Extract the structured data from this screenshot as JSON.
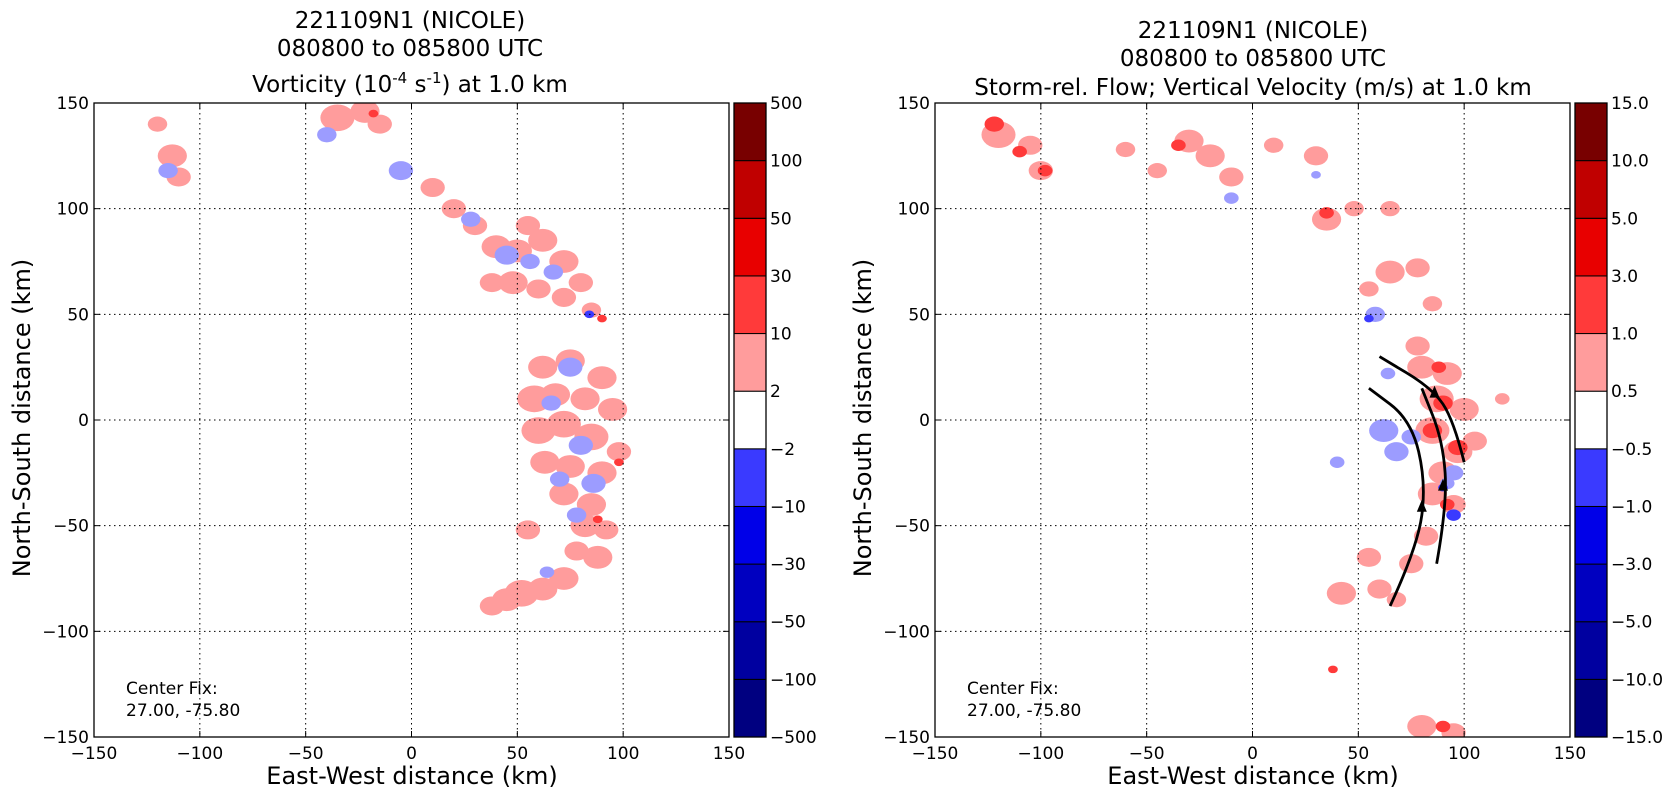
{
  "colors": {
    "positive": [
      "#ff9c9c",
      "#ff3a3a",
      "#e80000",
      "#c00000",
      "#a00000",
      "#780000"
    ],
    "negative": [
      "#9c9cff",
      "#3a3aff",
      "#0000e8",
      "#0000c0",
      "#0000a0",
      "#000080"
    ],
    "neutral": "#ffffff"
  },
  "chart_data": [
    {
      "type": "heatmap",
      "title_line1": "221109N1 (NICOLE)",
      "title_line2": "080800 to 085800 UTC",
      "title_line3_pre": "Vorticity (10",
      "title_line3_sup1": "-4",
      "title_line3_mid": " s",
      "title_line3_sup2": "-1",
      "title_line3_post": ") at 1.0 km",
      "xlabel": "East-West distance (km)",
      "ylabel": "North-South distance (km)",
      "xlim": [
        -150,
        150
      ],
      "ylim": [
        -150,
        150
      ],
      "xticks": [
        -150,
        -100,
        -50,
        0,
        50,
        100,
        150
      ],
      "yticks": [
        -150,
        -100,
        -50,
        0,
        50,
        100,
        150
      ],
      "grid": true,
      "annotation_line1": "Center Fix:",
      "annotation_line2": "27.00, -75.80",
      "colorbar_levels": [
        "−500",
        "−100",
        "−50",
        "−30",
        "−10",
        "−2",
        "2",
        "10",
        "30",
        "50",
        "100",
        "500"
      ],
      "patches_pos": [
        {
          "x": -120,
          "y": 140,
          "r": 4
        },
        {
          "x": -113,
          "y": 125,
          "r": 6
        },
        {
          "x": -110,
          "y": 115,
          "r": 5
        },
        {
          "x": -35,
          "y": 143,
          "r": 7
        },
        {
          "x": -22,
          "y": 146,
          "r": 6
        },
        {
          "x": -15,
          "y": 140,
          "r": 5
        },
        {
          "x": 10,
          "y": 110,
          "r": 5
        },
        {
          "x": 20,
          "y": 100,
          "r": 5
        },
        {
          "x": 30,
          "y": 92,
          "r": 5
        },
        {
          "x": 40,
          "y": 82,
          "r": 6
        },
        {
          "x": 50,
          "y": 80,
          "r": 6
        },
        {
          "x": 55,
          "y": 92,
          "r": 5
        },
        {
          "x": 62,
          "y": 85,
          "r": 6
        },
        {
          "x": 72,
          "y": 75,
          "r": 6
        },
        {
          "x": 80,
          "y": 65,
          "r": 5
        },
        {
          "x": 38,
          "y": 65,
          "r": 5
        },
        {
          "x": 48,
          "y": 65,
          "r": 6
        },
        {
          "x": 60,
          "y": 62,
          "r": 5
        },
        {
          "x": 72,
          "y": 58,
          "r": 5
        },
        {
          "x": 85,
          "y": 52,
          "r": 4
        },
        {
          "x": 62,
          "y": 25,
          "r": 6
        },
        {
          "x": 75,
          "y": 28,
          "r": 6
        },
        {
          "x": 90,
          "y": 20,
          "r": 6
        },
        {
          "x": 58,
          "y": 10,
          "r": 7
        },
        {
          "x": 68,
          "y": 12,
          "r": 6
        },
        {
          "x": 82,
          "y": 10,
          "r": 6
        },
        {
          "x": 95,
          "y": 5,
          "r": 6
        },
        {
          "x": 60,
          "y": -5,
          "r": 7
        },
        {
          "x": 72,
          "y": -2,
          "r": 7
        },
        {
          "x": 85,
          "y": -8,
          "r": 7
        },
        {
          "x": 98,
          "y": -15,
          "r": 5
        },
        {
          "x": 63,
          "y": -20,
          "r": 6
        },
        {
          "x": 75,
          "y": -22,
          "r": 6
        },
        {
          "x": 90,
          "y": -25,
          "r": 6
        },
        {
          "x": 72,
          "y": -35,
          "r": 6
        },
        {
          "x": 85,
          "y": -40,
          "r": 6
        },
        {
          "x": 82,
          "y": -50,
          "r": 6
        },
        {
          "x": 92,
          "y": -52,
          "r": 5
        },
        {
          "x": 55,
          "y": -52,
          "r": 5
        },
        {
          "x": 78,
          "y": -62,
          "r": 5
        },
        {
          "x": 88,
          "y": -65,
          "r": 6
        },
        {
          "x": 72,
          "y": -75,
          "r": 6
        },
        {
          "x": 62,
          "y": -80,
          "r": 6
        },
        {
          "x": 52,
          "y": -82,
          "r": 7
        },
        {
          "x": 45,
          "y": -85,
          "r": 6
        },
        {
          "x": 38,
          "y": -88,
          "r": 5
        }
      ],
      "patches_neg": [
        {
          "x": -115,
          "y": 118,
          "r": 4
        },
        {
          "x": -40,
          "y": 135,
          "r": 4
        },
        {
          "x": -5,
          "y": 118,
          "r": 5
        },
        {
          "x": 28,
          "y": 95,
          "r": 4
        },
        {
          "x": 45,
          "y": 78,
          "r": 5
        },
        {
          "x": 56,
          "y": 75,
          "r": 4
        },
        {
          "x": 67,
          "y": 70,
          "r": 4
        },
        {
          "x": 75,
          "y": 25,
          "r": 5
        },
        {
          "x": 66,
          "y": 8,
          "r": 4
        },
        {
          "x": 80,
          "y": -12,
          "r": 5
        },
        {
          "x": 70,
          "y": -28,
          "r": 4
        },
        {
          "x": 86,
          "y": -30,
          "r": 5
        },
        {
          "x": 78,
          "y": -45,
          "r": 4
        },
        {
          "x": 64,
          "y": -72,
          "r": 3
        }
      ],
      "patches_strong_pos": [
        {
          "x": 88,
          "y": -47,
          "r": 2
        },
        {
          "x": 98,
          "y": -20,
          "r": 2
        },
        {
          "x": 90,
          "y": 48,
          "r": 2
        },
        {
          "x": -18,
          "y": 145,
          "r": 2
        }
      ],
      "patches_strong_neg": [
        {
          "x": 84,
          "y": 50,
          "r": 2
        }
      ]
    },
    {
      "type": "heatmap",
      "title_line1": "221109N1 (NICOLE)",
      "title_line2": "080800 to 085800 UTC",
      "title_line3": "Storm-rel. Flow; Vertical Velocity (m/s) at 1.0 km",
      "xlabel": "East-West distance (km)",
      "ylabel": "North-South distance (km)",
      "xlim": [
        -150,
        150
      ],
      "ylim": [
        -150,
        150
      ],
      "xticks": [
        -150,
        -100,
        -50,
        0,
        50,
        100,
        150
      ],
      "yticks": [
        -150,
        -100,
        -50,
        0,
        50,
        100,
        150
      ],
      "grid": true,
      "annotation_line1": "Center Fix:",
      "annotation_line2": "27.00, -75.80",
      "colorbar_levels": [
        "−15.0",
        "−10.0",
        "−5.0",
        "−3.0",
        "−1.0",
        "−0.5",
        "0.5",
        "1.0",
        "3.0",
        "5.0",
        "10.0",
        "15.0"
      ],
      "patches_pos": [
        {
          "x": -120,
          "y": 135,
          "r": 7
        },
        {
          "x": -105,
          "y": 130,
          "r": 5
        },
        {
          "x": -100,
          "y": 118,
          "r": 5
        },
        {
          "x": -60,
          "y": 128,
          "r": 4
        },
        {
          "x": -45,
          "y": 118,
          "r": 4
        },
        {
          "x": -30,
          "y": 132,
          "r": 6
        },
        {
          "x": -20,
          "y": 125,
          "r": 6
        },
        {
          "x": -10,
          "y": 115,
          "r": 5
        },
        {
          "x": 10,
          "y": 130,
          "r": 4
        },
        {
          "x": 30,
          "y": 125,
          "r": 5
        },
        {
          "x": 35,
          "y": 95,
          "r": 6
        },
        {
          "x": 48,
          "y": 100,
          "r": 4
        },
        {
          "x": 65,
          "y": 100,
          "r": 4
        },
        {
          "x": 65,
          "y": 70,
          "r": 6
        },
        {
          "x": 78,
          "y": 72,
          "r": 5
        },
        {
          "x": 55,
          "y": 62,
          "r": 4
        },
        {
          "x": 85,
          "y": 55,
          "r": 4
        },
        {
          "x": 78,
          "y": 35,
          "r": 5
        },
        {
          "x": 80,
          "y": 25,
          "r": 6
        },
        {
          "x": 92,
          "y": 22,
          "r": 6
        },
        {
          "x": 87,
          "y": 10,
          "r": 7
        },
        {
          "x": 100,
          "y": 5,
          "r": 6
        },
        {
          "x": 85,
          "y": -5,
          "r": 7
        },
        {
          "x": 97,
          "y": -15,
          "r": 6
        },
        {
          "x": 105,
          "y": -10,
          "r": 5
        },
        {
          "x": 90,
          "y": -25,
          "r": 6
        },
        {
          "x": 85,
          "y": -35,
          "r": 6
        },
        {
          "x": 95,
          "y": -40,
          "r": 5
        },
        {
          "x": 82,
          "y": -55,
          "r": 5
        },
        {
          "x": 75,
          "y": -68,
          "r": 5
        },
        {
          "x": 55,
          "y": -65,
          "r": 5
        },
        {
          "x": 60,
          "y": -80,
          "r": 5
        },
        {
          "x": 42,
          "y": -82,
          "r": 6
        },
        {
          "x": 68,
          "y": -85,
          "r": 4
        },
        {
          "x": 118,
          "y": 10,
          "r": 3
        },
        {
          "x": 80,
          "y": -145,
          "r": 6
        },
        {
          "x": 95,
          "y": -148,
          "r": 5
        }
      ],
      "patches_neg": [
        {
          "x": -10,
          "y": 105,
          "r": 3
        },
        {
          "x": 40,
          "y": -20,
          "r": 3
        },
        {
          "x": 62,
          "y": -5,
          "r": 6
        },
        {
          "x": 68,
          "y": -15,
          "r": 5
        },
        {
          "x": 75,
          "y": -8,
          "r": 4
        },
        {
          "x": 95,
          "y": -25,
          "r": 4
        },
        {
          "x": 58,
          "y": 50,
          "r": 4
        },
        {
          "x": 64,
          "y": 22,
          "r": 3
        },
        {
          "x": 92,
          "y": -30,
          "r": 3
        },
        {
          "x": 30,
          "y": 116,
          "r": 2
        }
      ],
      "patches_strong_pos": [
        {
          "x": -122,
          "y": 140,
          "r": 4
        },
        {
          "x": -110,
          "y": 127,
          "r": 3
        },
        {
          "x": -98,
          "y": 118,
          "r": 3
        },
        {
          "x": -35,
          "y": 130,
          "r": 3
        },
        {
          "x": 35,
          "y": 98,
          "r": 3
        },
        {
          "x": 88,
          "y": 25,
          "r": 3
        },
        {
          "x": 90,
          "y": 8,
          "r": 4
        },
        {
          "x": 85,
          "y": -5,
          "r": 4
        },
        {
          "x": 97,
          "y": -13,
          "r": 4
        },
        {
          "x": 92,
          "y": -40,
          "r": 3
        },
        {
          "x": 38,
          "y": -118,
          "r": 2
        },
        {
          "x": 90,
          "y": -145,
          "r": 3
        }
      ],
      "patches_strong_neg": [
        {
          "x": 95,
          "y": -45,
          "r": 3
        },
        {
          "x": 90,
          "y": -32,
          "r": 2
        },
        {
          "x": 55,
          "y": 48,
          "r": 2
        }
      ],
      "streamlines": [
        {
          "points": [
            [
              65,
              -88
            ],
            [
              78,
              -60
            ],
            [
              82,
              -30
            ],
            [
              75,
              0
            ],
            [
              55,
              15
            ]
          ],
          "arrow": [
            80,
            -42
          ]
        },
        {
          "points": [
            [
              87,
              -68
            ],
            [
              92,
              -40
            ],
            [
              90,
              -10
            ],
            [
              80,
              15
            ]
          ],
          "arrow": [
            90,
            -32
          ]
        },
        {
          "points": [
            [
              100,
              -20
            ],
            [
              95,
              0
            ],
            [
              85,
              15
            ],
            [
              60,
              30
            ]
          ],
          "arrow": [
            86,
            12
          ]
        }
      ]
    }
  ]
}
